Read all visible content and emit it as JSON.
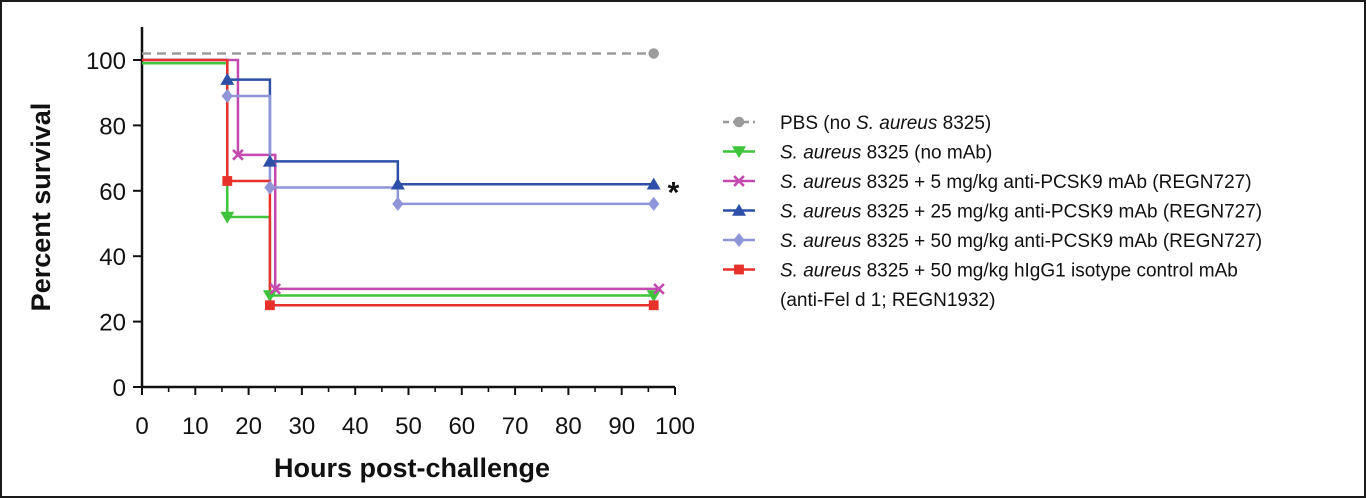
{
  "chart_data": {
    "type": "line",
    "subtype": "kaplan-meier survival (step)",
    "xlabel": "Hours post-challenge",
    "ylabel": "Percent survival",
    "xlim": [
      0,
      100
    ],
    "ylim": [
      0,
      100
    ],
    "xticks": [
      "0",
      "10",
      "20",
      "30",
      "40",
      "50",
      "60",
      "70",
      "80",
      "90",
      "100"
    ],
    "yticks": [
      "0",
      "20",
      "40",
      "60",
      "80",
      "100"
    ],
    "grid": false,
    "legend_position": "right",
    "significance_mark": "*",
    "significance_series_index": 3,
    "series": [
      {
        "name_parts": [
          {
            "text": "PBS (no "
          },
          {
            "text": "S. aureus",
            "italic": true
          },
          {
            "text": " 8325)"
          }
        ],
        "color": "#9b9b9b",
        "marker": "circle",
        "dashed": true,
        "steps": [
          [
            0,
            102
          ],
          [
            96,
            102
          ]
        ],
        "markers": [
          [
            96,
            102
          ]
        ]
      },
      {
        "name_parts": [
          {
            "text": "S. aureus",
            "italic": true
          },
          {
            "text": " 8325 (no mAb)"
          }
        ],
        "color": "#3ec43a",
        "marker": "triangle-down",
        "dashed": false,
        "steps": [
          [
            0,
            99
          ],
          [
            16,
            52
          ],
          [
            24,
            28
          ],
          [
            96,
            28
          ]
        ],
        "markers": [
          [
            16,
            52
          ],
          [
            24,
            28
          ],
          [
            96,
            28
          ]
        ]
      },
      {
        "name_parts": [
          {
            "text": "S. aureus",
            "italic": true
          },
          {
            "text": " 8325 + 5 mg/kg anti-PCSK9 mAb (REGN727)"
          }
        ],
        "color": "#c44ab0",
        "marker": "x",
        "dashed": false,
        "steps": [
          [
            0,
            100
          ],
          [
            18,
            71
          ],
          [
            25,
            30
          ],
          [
            97,
            30
          ]
        ],
        "markers": [
          [
            18,
            71
          ],
          [
            25,
            30
          ],
          [
            97,
            30
          ]
        ]
      },
      {
        "name_parts": [
          {
            "text": "S. aureus",
            "italic": true
          },
          {
            "text": " 8325 + 25 mg/kg anti-PCSK9 mAb (REGN727)"
          }
        ],
        "color": "#2e4fa8",
        "marker": "triangle-up",
        "dashed": false,
        "steps": [
          [
            0,
            100
          ],
          [
            16,
            94
          ],
          [
            24,
            69
          ],
          [
            48,
            62
          ],
          [
            96,
            62
          ]
        ],
        "markers": [
          [
            16,
            94
          ],
          [
            24,
            69
          ],
          [
            48,
            62
          ],
          [
            96,
            62
          ]
        ]
      },
      {
        "name_parts": [
          {
            "text": "S. aureus",
            "italic": true
          },
          {
            "text": " 8325 + 50 mg/kg anti-PCSK9 mAb (REGN727)"
          }
        ],
        "color": "#8f95d6",
        "marker": "diamond",
        "dashed": false,
        "steps": [
          [
            0,
            100
          ],
          [
            16,
            89
          ],
          [
            24,
            61
          ],
          [
            48,
            56
          ],
          [
            96,
            56
          ]
        ],
        "markers": [
          [
            16,
            89
          ],
          [
            24,
            61
          ],
          [
            48,
            56
          ],
          [
            96,
            56
          ]
        ]
      },
      {
        "name_parts": [
          {
            "text": "S. aureus",
            "italic": true
          },
          {
            "text": " 8325 + 50 mg/kg hIgG1 isotype control mAb"
          }
        ],
        "name_line2": "(anti-Fel d 1; REGN1932)",
        "color": "#e8312a",
        "marker": "square",
        "dashed": false,
        "steps": [
          [
            0,
            100
          ],
          [
            16,
            63
          ],
          [
            24,
            25
          ],
          [
            96,
            25
          ]
        ],
        "markers": [
          [
            16,
            63
          ],
          [
            24,
            25
          ],
          [
            96,
            25
          ]
        ]
      }
    ]
  }
}
